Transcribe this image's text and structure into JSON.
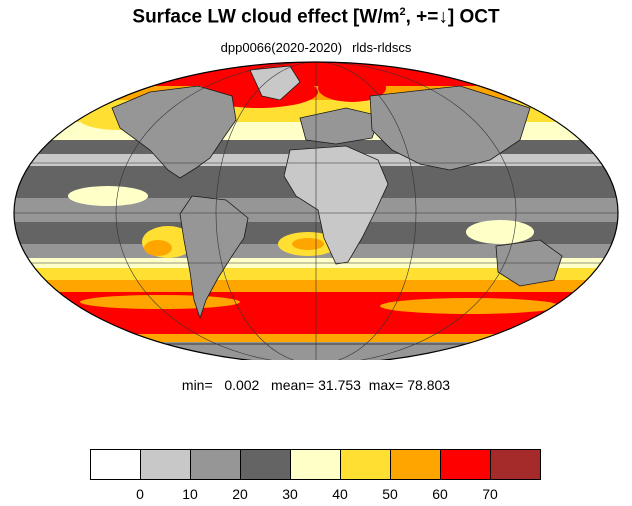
{
  "title": {
    "main": "Surface LW cloud effect [W/m",
    "sup": "2",
    "rest": ", +=↓]  OCT"
  },
  "subtitle": {
    "run": "dpp0066(2020-2020)",
    "variable": "rlds-rldscs"
  },
  "stats": {
    "min_label": "min=",
    "min": "0.002",
    "mean_label": "mean=",
    "mean": "31.753",
    "max_label": "max=",
    "max": "78.803"
  },
  "map": {
    "projection": "Mollweide",
    "outline": "#000000",
    "land_outline": "#1a1a1a"
  },
  "colorbar": {
    "boundaries": [
      "0",
      "10",
      "20",
      "30",
      "40",
      "50",
      "60",
      "70"
    ],
    "colors": [
      "#ffffff",
      "#c8c8c8",
      "#969696",
      "#646464",
      "#ffffc8",
      "#ffe032",
      "#ffa500",
      "#ff0000",
      "#a52a2a"
    ]
  }
}
